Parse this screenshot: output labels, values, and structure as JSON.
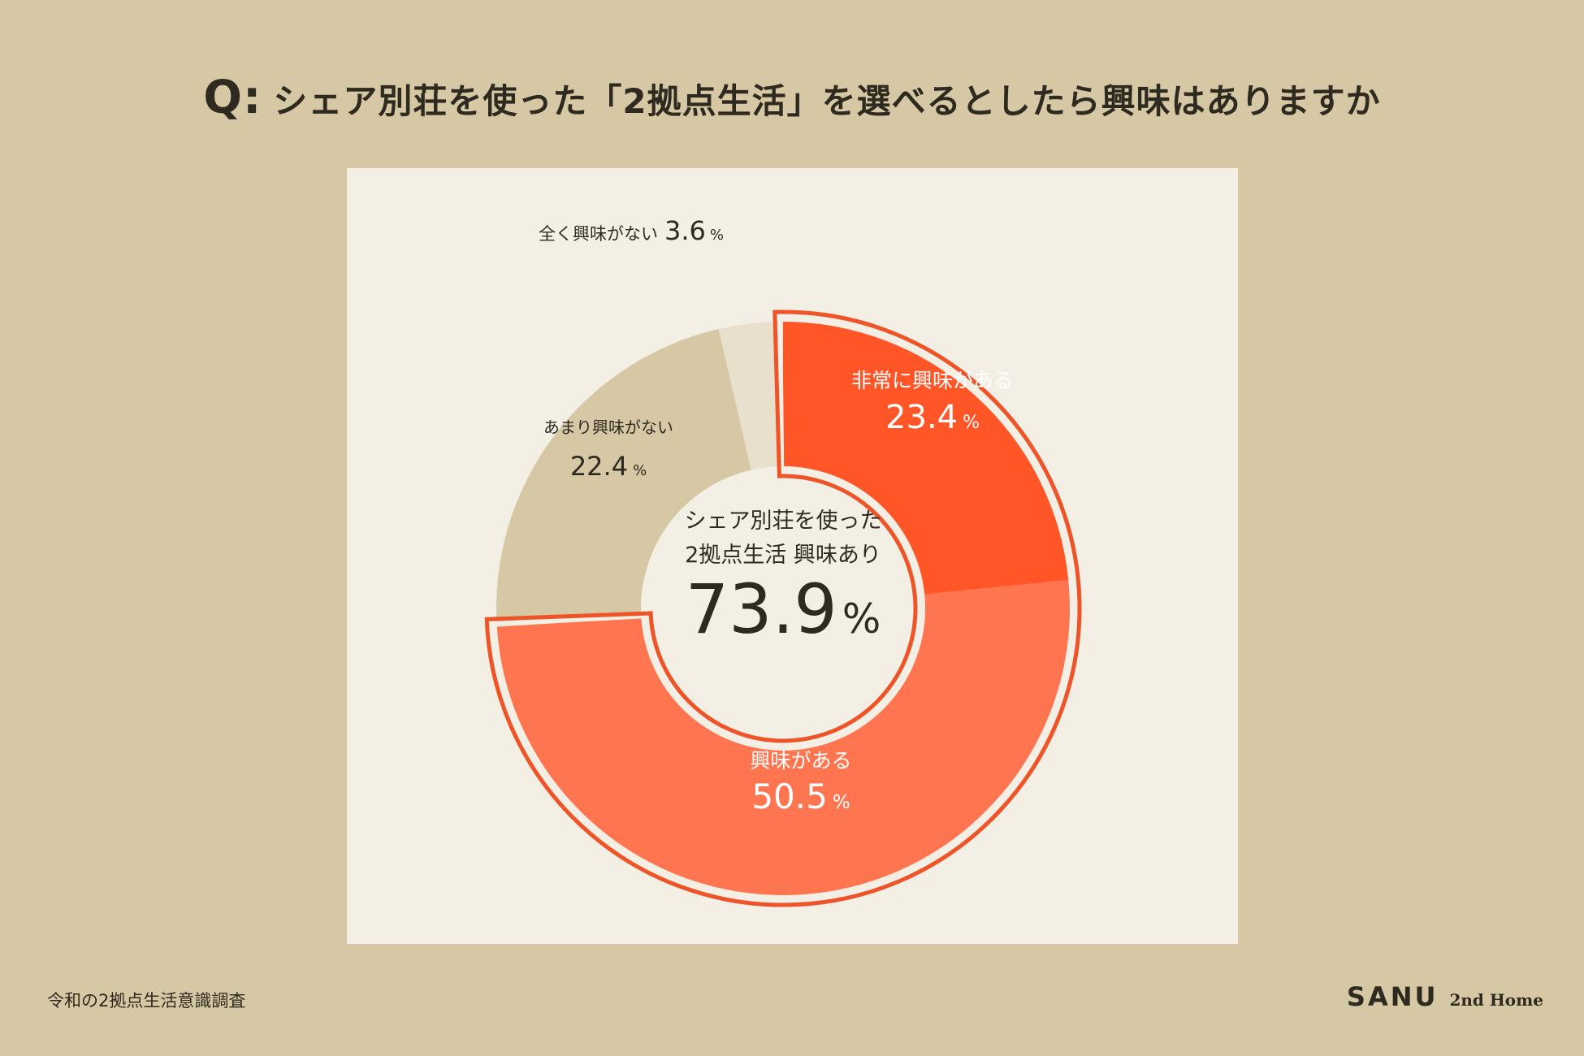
{
  "question": {
    "prefix": "Q:",
    "text": "シェア別荘を使った「2拠点生活」を選べるとしたら興味はありますか"
  },
  "chart_data": {
    "type": "pie",
    "donut": true,
    "slices": [
      {
        "label": "非常に興味がある",
        "value": 23.4,
        "color": "#ff5527",
        "text_color": "#ffffff",
        "highlight": true
      },
      {
        "label": "興味がある",
        "value": 50.5,
        "color": "#ff7550",
        "text_color": "#ffffff",
        "highlight": true
      },
      {
        "label": "あまり興味がない",
        "value": 22.4,
        "color": "#d6c8a4",
        "text_color": "#2e2a20",
        "highlight": false
      },
      {
        "label": "全く興味がない",
        "value": 3.6,
        "color": "#e8e0cc",
        "text_color": "#2e2a20",
        "highlight": false
      }
    ],
    "unit": "%",
    "center": {
      "line1": "シェア別荘を使った",
      "line2": "2拠点生活 興味あり",
      "value": "73.9"
    },
    "highlight_outline_color": "#ee5427"
  },
  "footer": {
    "source": "令和の2拠点生活意識調査",
    "brand": "SANU",
    "brand_sub": "2nd Home"
  }
}
